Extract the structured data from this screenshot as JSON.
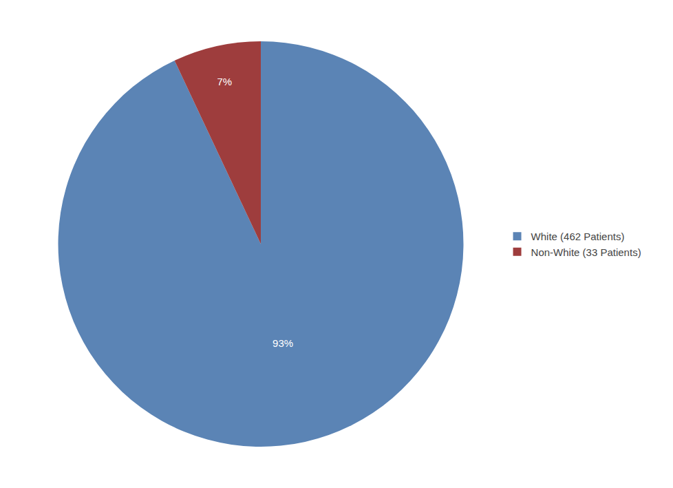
{
  "chart_data": {
    "type": "pie",
    "categories": [
      "White (462 Patients)",
      "Non-White (33 Patients)"
    ],
    "values": [
      93,
      7
    ],
    "value_labels": [
      "93%",
      "7%"
    ],
    "colors": [
      "#5b84b5",
      "#9e3d3d"
    ],
    "data_labels": true,
    "legend": "right"
  }
}
